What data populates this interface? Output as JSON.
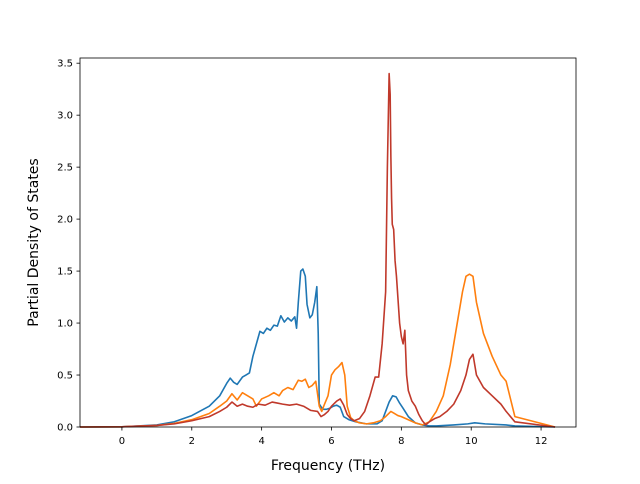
{
  "chart_data": {
    "type": "line",
    "title": "",
    "xlabel": "Frequency (THz)",
    "ylabel": "Partial Density of States",
    "xlim": [
      -1.2,
      13.0
    ],
    "ylim": [
      0.0,
      3.55
    ],
    "xticks": [
      0,
      2,
      4,
      6,
      8,
      10,
      12
    ],
    "yticks": [
      0.0,
      0.5,
      1.0,
      1.5,
      2.0,
      2.5,
      3.0,
      3.5
    ],
    "xtick_labels": [
      "0",
      "2",
      "4",
      "6",
      "8",
      "10",
      "12"
    ],
    "ytick_labels": [
      "0.0",
      "0.5",
      "1.0",
      "1.5",
      "2.0",
      "2.5",
      "3.0",
      "3.5"
    ],
    "grid": false,
    "legend": "none",
    "series": [
      {
        "color": "#1f77b4",
        "x": [
          -1.2,
          0,
          1,
          1.5,
          2,
          2.5,
          2.8,
          3.0,
          3.1,
          3.2,
          3.3,
          3.45,
          3.55,
          3.65,
          3.75,
          3.85,
          3.95,
          4.05,
          4.15,
          4.25,
          4.35,
          4.45,
          4.55,
          4.65,
          4.75,
          4.85,
          4.95,
          5.0,
          5.05,
          5.12,
          5.18,
          5.25,
          5.3,
          5.38,
          5.45,
          5.52,
          5.58,
          5.62,
          5.65,
          5.75,
          5.85,
          5.95,
          6.05,
          6.15,
          6.25,
          6.35,
          6.5,
          6.7,
          7.0,
          7.3,
          7.45,
          7.55,
          7.65,
          7.75,
          7.85,
          7.95,
          8.05,
          8.2,
          8.4,
          8.6,
          8.8,
          9.0,
          9.5,
          9.9,
          10.1,
          10.4,
          11.0,
          11.25,
          12.4
        ],
        "y": [
          0,
          0.002,
          0.02,
          0.05,
          0.11,
          0.2,
          0.3,
          0.42,
          0.47,
          0.43,
          0.41,
          0.48,
          0.5,
          0.52,
          0.68,
          0.8,
          0.92,
          0.9,
          0.95,
          0.93,
          0.98,
          0.97,
          1.07,
          1.01,
          1.05,
          1.02,
          1.06,
          0.95,
          1.2,
          1.5,
          1.52,
          1.45,
          1.18,
          1.05,
          1.08,
          1.2,
          1.35,
          0.9,
          0.22,
          0.17,
          0.17,
          0.18,
          0.2,
          0.21,
          0.19,
          0.1,
          0.07,
          0.05,
          0.03,
          0.03,
          0.06,
          0.15,
          0.24,
          0.3,
          0.29,
          0.23,
          0.18,
          0.1,
          0.04,
          0.02,
          0.01,
          0.01,
          0.02,
          0.03,
          0.04,
          0.03,
          0.02,
          0.01,
          0
        ]
      },
      {
        "color": "#ff7f0e",
        "x": [
          -1.2,
          0,
          1,
          1.5,
          2,
          2.5,
          2.8,
          3.0,
          3.15,
          3.3,
          3.45,
          3.6,
          3.75,
          3.85,
          4.0,
          4.2,
          4.35,
          4.5,
          4.6,
          4.75,
          4.9,
          5.05,
          5.15,
          5.25,
          5.35,
          5.45,
          5.55,
          5.65,
          5.72,
          5.8,
          5.9,
          6.0,
          6.1,
          6.2,
          6.3,
          6.38,
          6.45,
          6.55,
          6.65,
          6.8,
          7.0,
          7.2,
          7.4,
          7.55,
          7.7,
          7.8,
          7.9,
          8.0,
          8.2,
          8.4,
          8.6,
          8.8,
          9.0,
          9.2,
          9.4,
          9.6,
          9.75,
          9.85,
          9.95,
          10.05,
          10.15,
          10.35,
          10.6,
          10.85,
          11.0,
          11.25,
          12.4
        ],
        "y": [
          0,
          0.002,
          0.015,
          0.035,
          0.07,
          0.13,
          0.2,
          0.25,
          0.32,
          0.26,
          0.33,
          0.3,
          0.27,
          0.2,
          0.27,
          0.3,
          0.33,
          0.3,
          0.35,
          0.38,
          0.36,
          0.45,
          0.44,
          0.46,
          0.38,
          0.4,
          0.44,
          0.2,
          0.15,
          0.22,
          0.3,
          0.5,
          0.55,
          0.58,
          0.62,
          0.5,
          0.2,
          0.09,
          0.06,
          0.04,
          0.03,
          0.04,
          0.06,
          0.1,
          0.15,
          0.13,
          0.11,
          0.1,
          0.07,
          0.04,
          0.02,
          0.05,
          0.15,
          0.3,
          0.6,
          1.0,
          1.3,
          1.45,
          1.47,
          1.45,
          1.2,
          0.9,
          0.68,
          0.5,
          0.44,
          0.1,
          0
        ]
      },
      {
        "color": "#c0392b",
        "x": [
          -1.2,
          0,
          1,
          1.5,
          2,
          2.5,
          2.8,
          3.0,
          3.15,
          3.3,
          3.45,
          3.6,
          3.75,
          3.9,
          4.1,
          4.3,
          4.45,
          4.6,
          4.8,
          5.0,
          5.2,
          5.4,
          5.6,
          5.7,
          5.8,
          5.9,
          6.0,
          6.15,
          6.25,
          6.35,
          6.45,
          6.55,
          6.65,
          6.8,
          6.95,
          7.1,
          7.25,
          7.35,
          7.45,
          7.55,
          7.6,
          7.65,
          7.68,
          7.7,
          7.72,
          7.74,
          7.78,
          7.82,
          7.86,
          7.9,
          7.95,
          8.0,
          8.05,
          8.1,
          8.15,
          8.2,
          8.3,
          8.4,
          8.5,
          8.6,
          8.7,
          8.8,
          8.95,
          9.1,
          9.3,
          9.5,
          9.7,
          9.85,
          9.95,
          10.05,
          10.15,
          10.35,
          10.6,
          10.85,
          11.0,
          11.25,
          12.4
        ],
        "y": [
          0,
          0.002,
          0.015,
          0.03,
          0.06,
          0.1,
          0.15,
          0.19,
          0.24,
          0.2,
          0.22,
          0.2,
          0.19,
          0.22,
          0.21,
          0.24,
          0.23,
          0.22,
          0.21,
          0.22,
          0.2,
          0.16,
          0.15,
          0.1,
          0.12,
          0.15,
          0.2,
          0.25,
          0.27,
          0.21,
          0.12,
          0.08,
          0.06,
          0.08,
          0.15,
          0.3,
          0.48,
          0.48,
          0.8,
          1.3,
          2.5,
          3.4,
          3.2,
          2.6,
          2.2,
          1.95,
          1.9,
          1.6,
          1.45,
          1.25,
          1.0,
          0.87,
          0.8,
          0.93,
          0.5,
          0.35,
          0.25,
          0.2,
          0.12,
          0.06,
          0.02,
          0.05,
          0.08,
          0.1,
          0.15,
          0.22,
          0.35,
          0.5,
          0.65,
          0.7,
          0.5,
          0.38,
          0.3,
          0.22,
          0.15,
          0.05,
          0
        ]
      }
    ]
  }
}
